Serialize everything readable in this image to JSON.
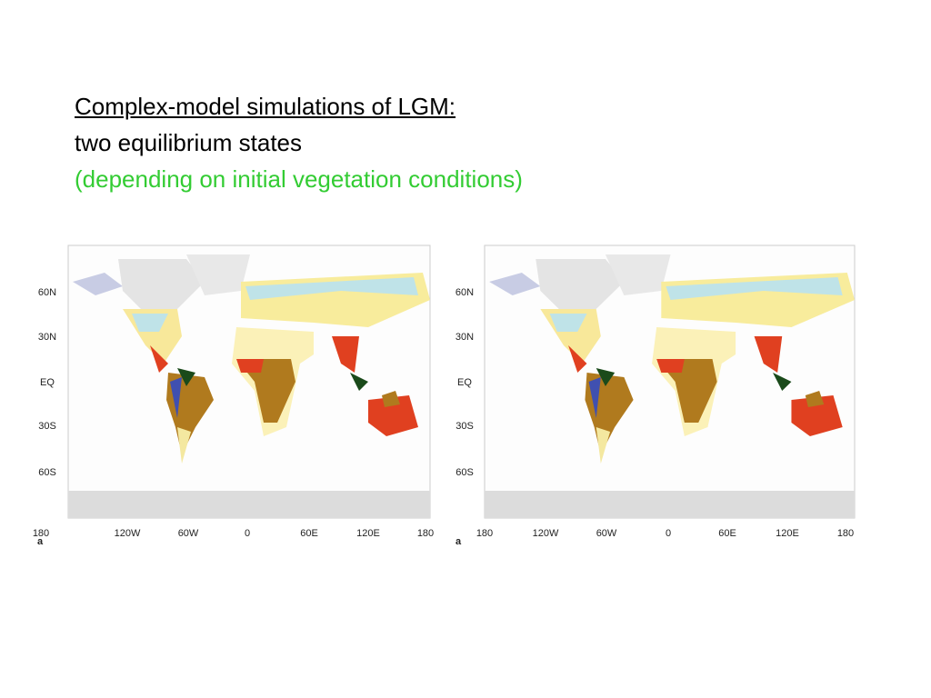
{
  "slide": {
    "title_lines": [
      "Complex-model simulations of LGM: ",
      "two equilibrium states",
      "(depending on initial vegetation conditions)"
    ]
  },
  "maps": [
    {
      "panel_label": "a",
      "y_labels": [
        "60N",
        "30N",
        "EQ",
        "30S",
        "60S"
      ],
      "x_labels": [
        "180",
        "120W",
        "60W",
        "0",
        "60E",
        "120E",
        "180"
      ]
    },
    {
      "panel_label": "a",
      "y_labels": [
        "60N",
        "30N",
        "EQ",
        "30S",
        "60S"
      ],
      "x_labels": [
        "180",
        "120W",
        "60W",
        "0",
        "60E",
        "120E",
        "180"
      ]
    }
  ]
}
